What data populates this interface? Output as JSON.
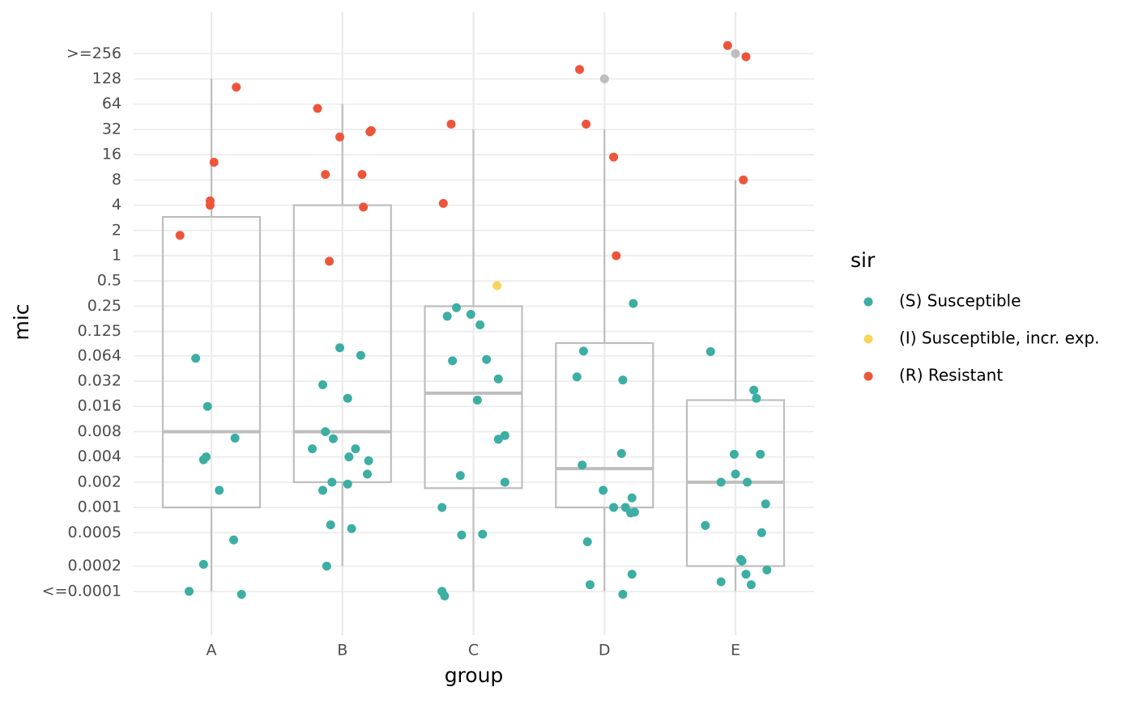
{
  "chart_data": {
    "type": "box-jitter",
    "x_label": "group",
    "y_label": "mic",
    "log_scale": "y",
    "grid": true,
    "categories": [
      "A",
      "B",
      "C",
      "D",
      "E"
    ],
    "ylim": [
      3e-05,
      800
    ],
    "yticks": [
      {
        "value": 0.0001,
        "label": "<=0.0001"
      },
      0.0002,
      0.0005,
      0.001,
      0.002,
      0.004,
      0.008,
      0.016,
      0.032,
      0.064,
      0.125,
      0.25,
      0.5,
      1,
      2,
      4,
      8,
      16,
      32,
      64,
      128,
      {
        "value": 256,
        "label": ">=256"
      }
    ],
    "box_color": "#bebebe",
    "boxes": {
      "whislo": [
        0.0001,
        0.0002,
        0.0001,
        0.0001,
        0.0001
      ],
      "q1": [
        0.001,
        0.002,
        0.0017,
        0.001,
        0.0002
      ],
      "median": [
        0.008,
        0.008,
        0.023,
        0.0029,
        0.002
      ],
      "q3": [
        2.9,
        4,
        0.25,
        0.091,
        0.019
      ],
      "whishi": [
        128,
        64,
        32,
        32,
        8
      ]
    },
    "legend_title": "sir",
    "series": [
      {
        "name": "(S) Susceptible",
        "color": "#3cae a3",
        "x": [
          0.88,
          0.97,
          1.18,
          0.96,
          0.94,
          1.06,
          1.17,
          0.94,
          0.83,
          1.23,
          1.98,
          2.14,
          1.85,
          2.04,
          1.87,
          1.93,
          1.77,
          2.1,
          2.05,
          2.2,
          2.19,
          1.92,
          2.04,
          1.85,
          1.91,
          2.07,
          1.88,
          2.87,
          2.98,
          2.8,
          3.05,
          2.84,
          3.1,
          3.19,
          3.03,
          3.24,
          3.19,
          2.9,
          3.24,
          2.76,
          2.91,
          3.07,
          2.76,
          2.78,
          4.22,
          3.84,
          3.79,
          4.14,
          4.13,
          3.83,
          3.99,
          4.21,
          4.07,
          4.16,
          4.2,
          4.23,
          3.87,
          4.21,
          3.89,
          4.14,
          4.81,
          5.14,
          5.16,
          4.99,
          5.19,
          5.0,
          4.89,
          5.09,
          5.23,
          4.77,
          5.2,
          5.04,
          5.05,
          5.08,
          4.89,
          5.24,
          5.12
        ],
        "values": [
          0.06,
          0.016,
          0.0067,
          0.004,
          0.0037,
          0.0016,
          0.00041,
          0.00021,
          0.0001,
          9.2e-05,
          0.08,
          0.065,
          0.029,
          0.02,
          0.008,
          0.0066,
          0.005,
          0.005,
          0.004,
          0.0036,
          0.0025,
          0.002,
          0.0019,
          0.0016,
          0.00062,
          0.00056,
          0.0002,
          0.24,
          0.2,
          0.19,
          0.15,
          0.056,
          0.058,
          0.034,
          0.019,
          0.0072,
          0.0065,
          0.0024,
          0.002,
          0.001,
          0.00047,
          0.00048,
          0.0001,
          8.8e-05,
          0.27,
          0.073,
          0.036,
          0.033,
          0.0044,
          0.0032,
          0.0016,
          0.0013,
          0.001,
          0.001,
          0.00086,
          0.00088,
          0.00039,
          0.00016,
          0.00012,
          9.2e-05,
          0.072,
          0.025,
          0.02,
          0.0043,
          0.0043,
          0.0025,
          0.002,
          0.002,
          0.0011,
          0.00061,
          0.0005,
          0.00024,
          0.00023,
          0.00016,
          0.00013,
          0.00018,
          0.00012
        ]
      },
      {
        "name": "(I) Susceptible, incr. exp.",
        "color": "#f6d55c",
        "x": [
          3.18
        ],
        "values": [
          0.44
        ]
      },
      {
        "name": "(R) Resistant",
        "color": "#ed553b",
        "x": [
          1.19,
          1.02,
          0.99,
          0.99,
          0.76,
          1.81,
          1.98,
          2.22,
          2.21,
          1.87,
          2.15,
          2.16,
          1.9,
          2.83,
          2.77,
          3.81,
          3.86,
          4.07,
          4.09,
          4.94,
          5.08,
          5.06
        ],
        "values": [
          102,
          13,
          4.5,
          4,
          1.75,
          57,
          26,
          31,
          30,
          9.3,
          9.3,
          3.8,
          0.86,
          37,
          4.2,
          166,
          37,
          15,
          1,
          320,
          235,
          8
        ]
      },
      {
        "color": "#bebebe",
        "x": [
          4.0,
          5.0
        ],
        "values": [
          128,
          256
        ]
      }
    ]
  }
}
